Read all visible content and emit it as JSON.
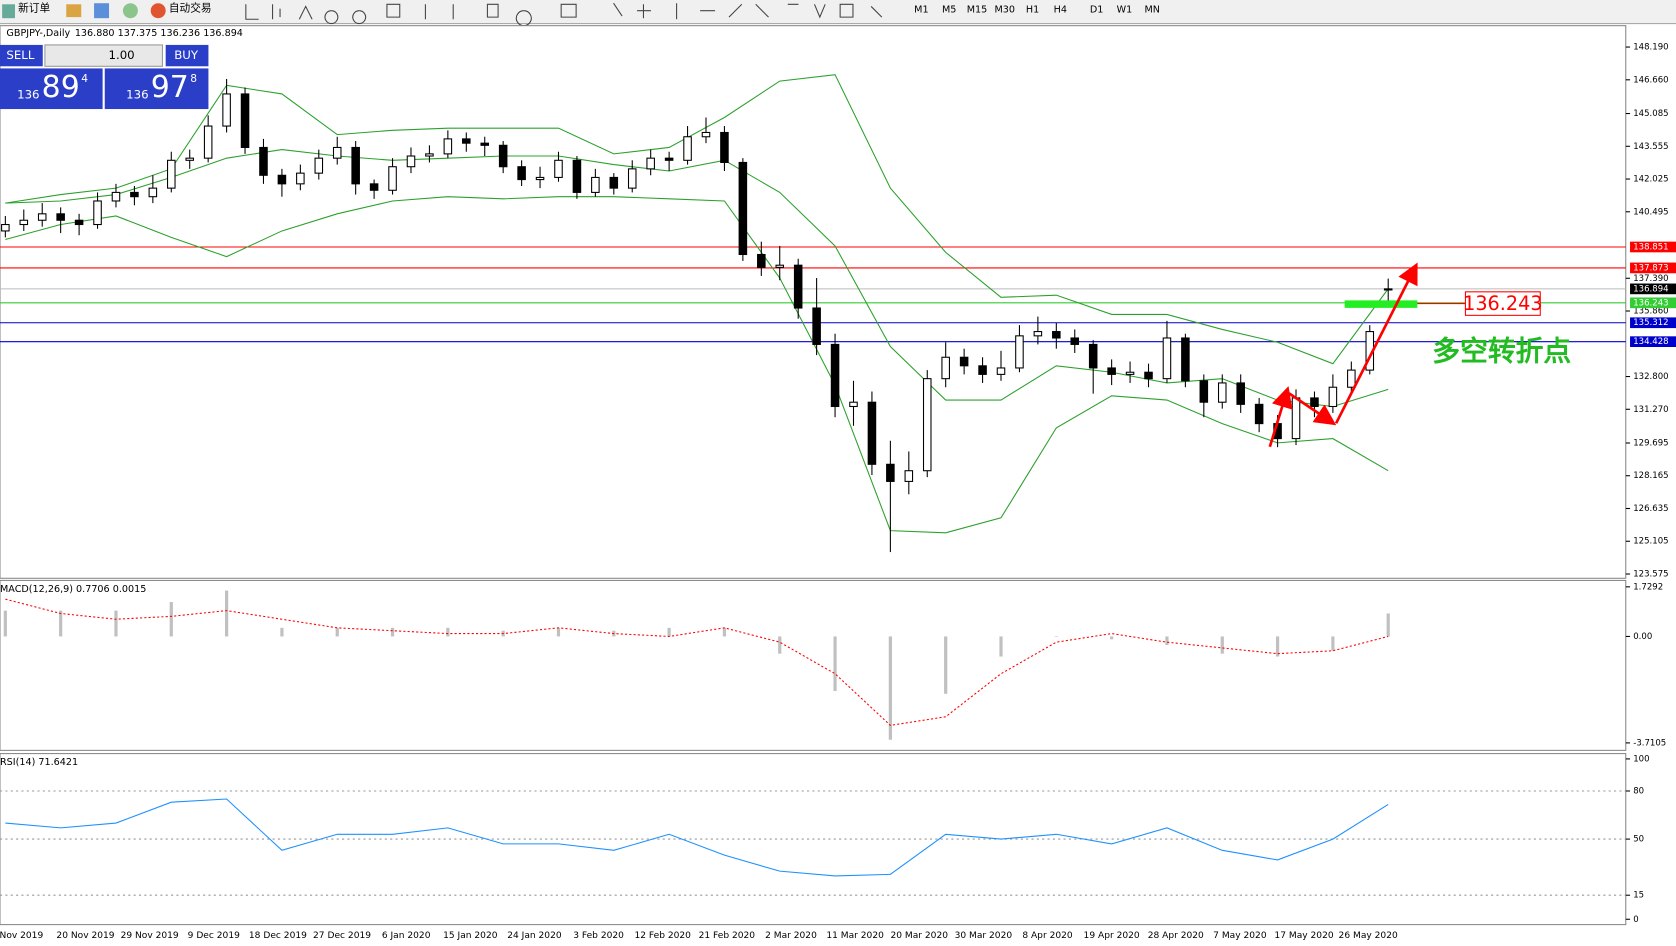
{
  "toolbar": {
    "new_order": "新订单",
    "auto_trade": "自动交易",
    "timeframes": [
      "M1",
      "M5",
      "M15",
      "M30",
      "H1",
      "H4",
      "D1",
      "W1",
      "MN"
    ]
  },
  "trade_panel": {
    "sell": "SELL",
    "lot": "1.00",
    "buy": "BUY",
    "sell_price": {
      "big": "136",
      "main": "89",
      "sup": "4"
    },
    "buy_price": {
      "big": "136",
      "main": "97",
      "sup": "8"
    }
  },
  "chart": {
    "symbol_label": "GBPJPY-,Daily",
    "ohlc_label": "136.880 137.375 136.236 136.894",
    "ylim": [
      123.575,
      148.19
    ],
    "yticks": [
      {
        "value": 148.19,
        "label": "148.190"
      },
      {
        "value": 146.66,
        "label": "146.660"
      },
      {
        "value": 145.085,
        "label": "145.085"
      },
      {
        "value": 143.555,
        "label": "143.555"
      },
      {
        "value": 142.025,
        "label": "142.025"
      },
      {
        "value": 140.495,
        "label": "140.495"
      },
      {
        "value": 137.39,
        "label": "137.390"
      },
      {
        "value": 135.86,
        "label": "135.860"
      },
      {
        "value": 132.8,
        "label": "132.800"
      },
      {
        "value": 131.27,
        "label": "131.270"
      },
      {
        "value": 129.695,
        "label": "129.695"
      },
      {
        "value": 128.165,
        "label": "128.165"
      },
      {
        "value": 126.635,
        "label": "126.635"
      },
      {
        "value": 125.105,
        "label": "125.105"
      },
      {
        "value": 123.575,
        "label": "123.575"
      }
    ],
    "candles": [
      [
        139.6,
        140.3,
        139.3,
        139.9
      ],
      [
        139.9,
        140.6,
        139.6,
        140.1
      ],
      [
        140.1,
        140.9,
        139.8,
        140.4
      ],
      [
        140.4,
        140.7,
        139.5,
        140.1
      ],
      [
        140.1,
        140.4,
        139.4,
        139.9
      ],
      [
        139.9,
        141.4,
        139.7,
        141.0
      ],
      [
        141.0,
        141.8,
        140.7,
        141.4
      ],
      [
        141.4,
        141.7,
        140.8,
        141.2
      ],
      [
        141.2,
        142.2,
        140.9,
        141.6
      ],
      [
        141.6,
        143.3,
        141.4,
        142.9
      ],
      [
        142.9,
        143.4,
        142.5,
        143.0
      ],
      [
        143.0,
        145.0,
        142.8,
        144.5
      ],
      [
        144.5,
        146.7,
        144.2,
        146.0
      ],
      [
        146.0,
        146.3,
        143.2,
        143.5
      ],
      [
        143.5,
        143.9,
        141.8,
        142.2
      ],
      [
        142.2,
        142.5,
        141.2,
        141.8
      ],
      [
        141.8,
        142.7,
        141.5,
        142.3
      ],
      [
        142.3,
        143.4,
        142.0,
        143.0
      ],
      [
        143.0,
        144.0,
        142.7,
        143.5
      ],
      [
        143.5,
        143.8,
        141.3,
        141.8
      ],
      [
        141.8,
        142.0,
        141.1,
        141.5
      ],
      [
        141.5,
        143.0,
        141.3,
        142.6
      ],
      [
        142.6,
        143.5,
        142.3,
        143.1
      ],
      [
        143.1,
        143.6,
        142.8,
        143.2
      ],
      [
        143.2,
        144.3,
        143.0,
        143.9
      ],
      [
        143.9,
        144.2,
        143.3,
        143.7
      ],
      [
        143.7,
        144.0,
        143.1,
        143.6
      ],
      [
        143.6,
        143.8,
        142.3,
        142.6
      ],
      [
        142.6,
        142.9,
        141.7,
        142.0
      ],
      [
        142.0,
        142.6,
        141.6,
        142.1
      ],
      [
        142.1,
        143.3,
        141.9,
        142.9
      ],
      [
        142.9,
        143.1,
        141.1,
        141.4
      ],
      [
        141.4,
        142.5,
        141.2,
        142.1
      ],
      [
        142.1,
        142.3,
        141.3,
        141.6
      ],
      [
        141.6,
        142.9,
        141.4,
        142.5
      ],
      [
        142.5,
        143.4,
        142.2,
        143.0
      ],
      [
        143.0,
        143.3,
        142.4,
        142.9
      ],
      [
        142.9,
        144.5,
        142.7,
        144.0
      ],
      [
        144.0,
        144.9,
        143.7,
        144.2
      ],
      [
        144.2,
        144.5,
        142.4,
        142.8
      ],
      [
        142.8,
        143.0,
        138.2,
        138.5
      ],
      [
        138.5,
        139.1,
        137.5,
        137.9
      ],
      [
        137.9,
        138.9,
        137.3,
        138.0
      ],
      [
        138.0,
        138.3,
        135.5,
        136.0
      ],
      [
        136.0,
        137.4,
        133.8,
        134.3
      ],
      [
        134.3,
        134.8,
        130.9,
        131.4
      ],
      [
        131.4,
        132.6,
        130.5,
        131.6
      ],
      [
        131.6,
        132.1,
        128.2,
        128.7
      ],
      [
        128.7,
        129.8,
        124.6,
        127.9
      ],
      [
        127.9,
        129.3,
        127.3,
        128.4
      ],
      [
        128.4,
        133.1,
        128.1,
        132.7
      ],
      [
        132.7,
        134.4,
        132.3,
        133.7
      ],
      [
        133.7,
        134.1,
        132.9,
        133.3
      ],
      [
        133.3,
        133.7,
        132.5,
        132.9
      ],
      [
        132.9,
        134.0,
        132.6,
        133.2
      ],
      [
        133.2,
        135.2,
        133.0,
        134.7
      ],
      [
        134.7,
        135.6,
        134.3,
        134.9
      ],
      [
        134.9,
        135.3,
        134.1,
        134.6
      ],
      [
        134.6,
        135.0,
        133.9,
        134.3
      ],
      [
        134.3,
        134.5,
        132.0,
        133.2
      ],
      [
        133.2,
        133.6,
        132.4,
        132.9
      ],
      [
        132.9,
        133.5,
        132.5,
        133.0
      ],
      [
        133.0,
        133.4,
        132.3,
        132.7
      ],
      [
        132.7,
        135.4,
        132.5,
        134.6
      ],
      [
        134.6,
        134.8,
        132.3,
        132.6
      ],
      [
        132.6,
        132.9,
        130.9,
        131.6
      ],
      [
        131.6,
        132.9,
        131.3,
        132.5
      ],
      [
        132.5,
        132.9,
        131.1,
        131.5
      ],
      [
        131.5,
        131.8,
        130.2,
        130.6
      ],
      [
        130.6,
        131.0,
        129.5,
        129.9
      ],
      [
        129.9,
        132.2,
        129.6,
        131.8
      ],
      [
        131.8,
        132.1,
        130.9,
        131.4
      ],
      [
        131.4,
        132.9,
        131.1,
        132.3
      ],
      [
        132.3,
        133.5,
        132.0,
        133.1
      ],
      [
        133.1,
        135.2,
        132.9,
        134.9
      ],
      [
        136.88,
        137.375,
        136.236,
        136.894
      ]
    ],
    "ix": [
      0,
      3,
      6,
      9,
      12,
      15,
      18,
      21,
      24,
      27,
      30,
      33,
      36,
      39,
      42,
      45,
      48,
      51,
      54,
      57,
      60,
      63,
      66,
      69,
      72,
      75
    ],
    "bands": {
      "color": "#2ca02c",
      "upper": [
        140.9,
        141.3,
        141.6,
        142.5,
        146.4,
        146.0,
        144.1,
        144.3,
        144.4,
        144.4,
        144.4,
        143.2,
        143.5,
        144.9,
        146.6,
        146.9,
        141.6,
        138.6,
        136.5,
        136.6,
        135.7,
        135.7,
        135.0,
        134.4,
        133.4,
        136.9
      ],
      "middle": [
        140.9,
        141.0,
        141.3,
        142.1,
        143.0,
        143.4,
        143.1,
        142.9,
        143.0,
        143.1,
        143.1,
        142.7,
        142.4,
        142.9,
        141.4,
        138.9,
        134.2,
        131.7,
        131.7,
        133.3,
        133.0,
        132.5,
        132.7,
        131.7,
        131.4,
        132.2
      ],
      "lower": [
        139.2,
        139.9,
        140.3,
        139.3,
        138.4,
        139.6,
        140.4,
        141.0,
        141.2,
        141.1,
        141.2,
        141.2,
        141.1,
        141.0,
        137.4,
        132.4,
        125.6,
        125.5,
        126.2,
        130.4,
        131.9,
        131.7,
        130.6,
        129.7,
        129.9,
        128.4
      ]
    },
    "levels": [
      {
        "value": 138.851,
        "label": "138.851",
        "color": "#ff0000"
      },
      {
        "value": 137.873,
        "label": "137.873",
        "color": "#ff0000"
      },
      {
        "value": 136.894,
        "label": "136.894",
        "color": "#000000"
      },
      {
        "value": 136.243,
        "label": "136.243",
        "color": "#33cc33"
      },
      {
        "value": 135.312,
        "label": "135.312",
        "color": "#0000cc"
      },
      {
        "value": 134.428,
        "label": "134.428",
        "color": "#0000cc"
      }
    ],
    "date_labels": [
      "Nov 2019",
      "20 Nov 2019",
      "29 Nov 2019",
      "9 Dec 2019",
      "18 Dec 2019",
      "27 Dec 2019",
      "6 Jan 2020",
      "15 Jan 2020",
      "24 Jan 2020",
      "3 Feb 2020",
      "12 Feb 2020",
      "21 Feb 2020",
      "2 Mar 2020",
      "11 Mar 2020",
      "20 Mar 2020",
      "30 Mar 2020",
      "8 Apr 2020",
      "19 Apr 2020",
      "28 Apr 2020",
      "7 May 2020",
      "17 May 2020",
      "26 May 2020"
    ],
    "annotations": {
      "price_box": "136.243",
      "text": "多空转折点"
    },
    "macd": {
      "label": "MACD(12,26,9) 0.7706 0.0015",
      "ylim": [
        -3.7105,
        1.7292
      ],
      "yticks": [
        1.7292,
        {
          "value": 0,
          "label": "0.00"
        },
        -3.7105
      ],
      "hist": [
        0.9,
        0.9,
        0.9,
        1.2,
        1.6,
        0.3,
        0.3,
        0.3,
        0.3,
        0.2,
        0.3,
        0.2,
        0.3,
        0.3,
        -0.6,
        -1.9,
        -3.6,
        -2.0,
        -0.7,
        0.0,
        -0.1,
        -0.3,
        -0.6,
        -0.7,
        -0.5,
        0.8
      ],
      "signal": [
        1.3,
        0.8,
        0.6,
        0.7,
        0.9,
        0.6,
        0.3,
        0.2,
        0.1,
        0.1,
        0.3,
        0.1,
        0.0,
        0.3,
        -0.2,
        -1.3,
        -3.1,
        -2.8,
        -1.3,
        -0.2,
        0.1,
        -0.2,
        -0.4,
        -0.6,
        -0.5,
        0.0
      ]
    },
    "rsi": {
      "label": "RSI(14) 71.6421",
      "ylim": [
        0,
        100
      ],
      "yticks": [
        100,
        80,
        50,
        15,
        0
      ],
      "grid": [
        80,
        50,
        15
      ],
      "values": [
        60,
        57,
        60,
        73,
        75,
        43,
        53,
        53,
        57,
        47,
        47,
        43,
        53,
        40,
        30,
        27,
        28,
        53,
        50,
        53,
        47,
        57,
        43,
        37,
        50,
        71.6
      ]
    }
  }
}
